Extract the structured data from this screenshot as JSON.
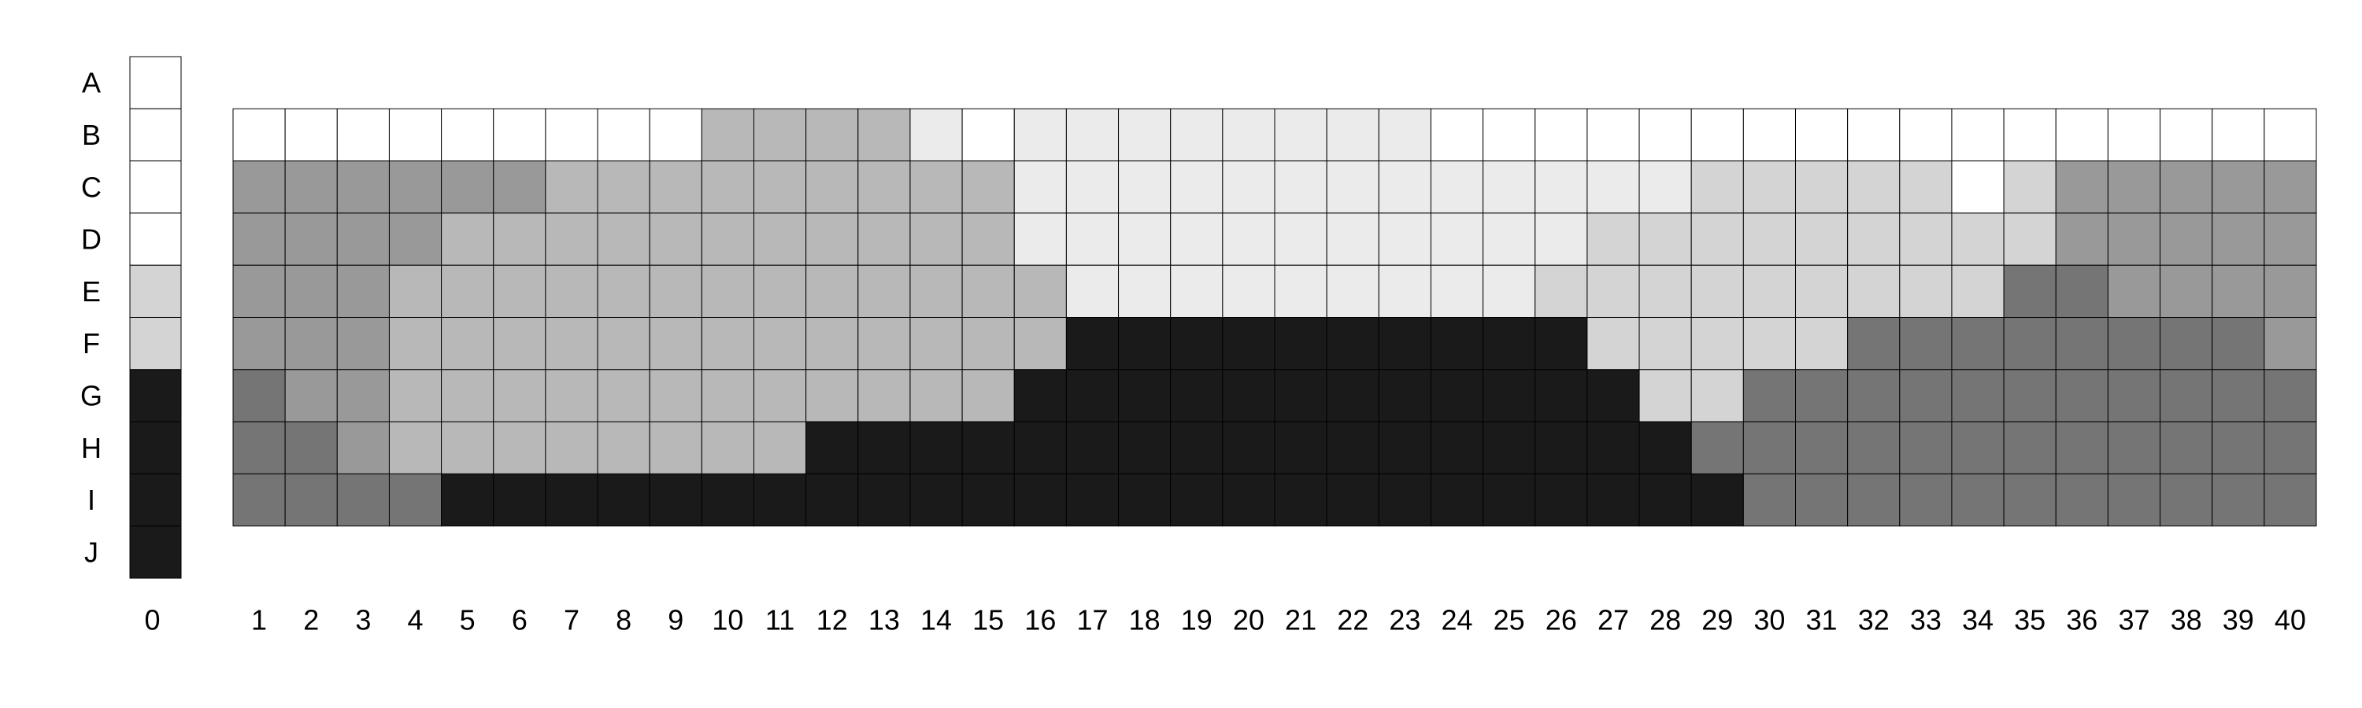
{
  "chart_data": {
    "type": "heatmap",
    "title": "",
    "xlabel": "",
    "ylabel": "",
    "row_labels": [
      "A",
      "B",
      "C",
      "D",
      "E",
      "F",
      "G",
      "H",
      "I",
      "J"
    ],
    "col_labels": [
      "0",
      "1",
      "2",
      "3",
      "4",
      "5",
      "6",
      "7",
      "8",
      "9",
      "10",
      "11",
      "12",
      "13",
      "14",
      "15",
      "16",
      "17",
      "18",
      "19",
      "20",
      "21",
      "22",
      "23",
      "24",
      "25",
      "26",
      "27",
      "28",
      "29",
      "30",
      "31",
      "32",
      "33",
      "34",
      "35",
      "36",
      "37",
      "38",
      "39",
      "40"
    ],
    "legend": [],
    "palette": {
      "1": "#ffffff",
      "2": "#ebebeb",
      "3": "#d4d4d4",
      "4": "#b8b8b8",
      "5": "#999999",
      "6": "#757575",
      "7": "#1a1a1a"
    },
    "reference_column": {
      "label": "0",
      "rows": [
        "A",
        "B",
        "C",
        "D",
        "E",
        "F",
        "G",
        "H",
        "I",
        "J"
      ],
      "values": [
        1,
        1,
        1,
        1,
        3,
        3,
        7,
        7,
        7,
        7
      ]
    },
    "grid_rows": [
      "B",
      "C",
      "D",
      "E",
      "F",
      "G",
      "H",
      "I"
    ],
    "grid_columns": [
      "1",
      "2",
      "3",
      "4",
      "5",
      "6",
      "7",
      "8",
      "9",
      "10",
      "11",
      "12",
      "13",
      "14",
      "15",
      "16",
      "17",
      "18",
      "19",
      "20",
      "21",
      "22",
      "23",
      "24",
      "25",
      "26",
      "27",
      "28",
      "29",
      "30",
      "31",
      "32",
      "33",
      "34",
      "35",
      "36",
      "37",
      "38",
      "39",
      "40"
    ],
    "grid_values": [
      [
        1,
        1,
        1,
        1,
        1,
        1,
        1,
        1,
        1,
        4,
        4,
        4,
        4,
        2,
        1,
        2,
        2,
        2,
        2,
        2,
        2,
        2,
        2,
        1,
        1,
        1,
        1,
        1,
        1,
        1,
        1,
        1,
        1,
        1,
        1,
        1,
        1,
        1,
        1,
        1
      ],
      [
        5,
        5,
        5,
        5,
        5,
        5,
        4,
        4,
        4,
        4,
        4,
        4,
        4,
        4,
        4,
        2,
        2,
        2,
        2,
        2,
        2,
        2,
        2,
        2,
        2,
        2,
        2,
        2,
        3,
        3,
        3,
        3,
        3,
        1,
        3,
        5,
        5,
        5,
        5,
        5
      ],
      [
        5,
        5,
        5,
        5,
        4,
        4,
        4,
        4,
        4,
        4,
        4,
        4,
        4,
        4,
        4,
        2,
        2,
        2,
        2,
        2,
        2,
        2,
        2,
        2,
        2,
        2,
        3,
        3,
        3,
        3,
        3,
        3,
        3,
        3,
        3,
        5,
        5,
        5,
        5,
        5
      ],
      [
        5,
        5,
        5,
        4,
        4,
        4,
        4,
        4,
        4,
        4,
        4,
        4,
        4,
        4,
        4,
        4,
        2,
        2,
        2,
        2,
        2,
        2,
        2,
        2,
        2,
        3,
        3,
        3,
        3,
        3,
        3,
        3,
        3,
        3,
        6,
        6,
        5,
        5,
        5,
        5
      ],
      [
        5,
        5,
        5,
        4,
        4,
        4,
        4,
        4,
        4,
        4,
        4,
        4,
        4,
        4,
        4,
        4,
        7,
        7,
        7,
        7,
        7,
        7,
        7,
        7,
        7,
        7,
        3,
        3,
        3,
        3,
        3,
        6,
        6,
        6,
        6,
        6,
        6,
        6,
        6,
        5
      ],
      [
        6,
        5,
        5,
        4,
        4,
        4,
        4,
        4,
        4,
        4,
        4,
        4,
        4,
        4,
        4,
        7,
        7,
        7,
        7,
        7,
        7,
        7,
        7,
        7,
        7,
        7,
        7,
        3,
        3,
        6,
        6,
        6,
        6,
        6,
        6,
        6,
        6,
        6,
        6,
        6
      ],
      [
        6,
        6,
        5,
        4,
        4,
        4,
        4,
        4,
        4,
        4,
        4,
        7,
        7,
        7,
        7,
        7,
        7,
        7,
        7,
        7,
        7,
        7,
        7,
        7,
        7,
        7,
        7,
        7,
        6,
        6,
        6,
        6,
        6,
        6,
        6,
        6,
        6,
        6,
        6,
        6
      ],
      [
        6,
        6,
        6,
        6,
        7,
        7,
        7,
        7,
        7,
        7,
        7,
        7,
        7,
        7,
        7,
        7,
        7,
        7,
        7,
        7,
        7,
        7,
        7,
        7,
        7,
        7,
        7,
        7,
        7,
        6,
        6,
        6,
        6,
        6,
        6,
        6,
        6,
        6,
        6,
        6
      ]
    ]
  }
}
